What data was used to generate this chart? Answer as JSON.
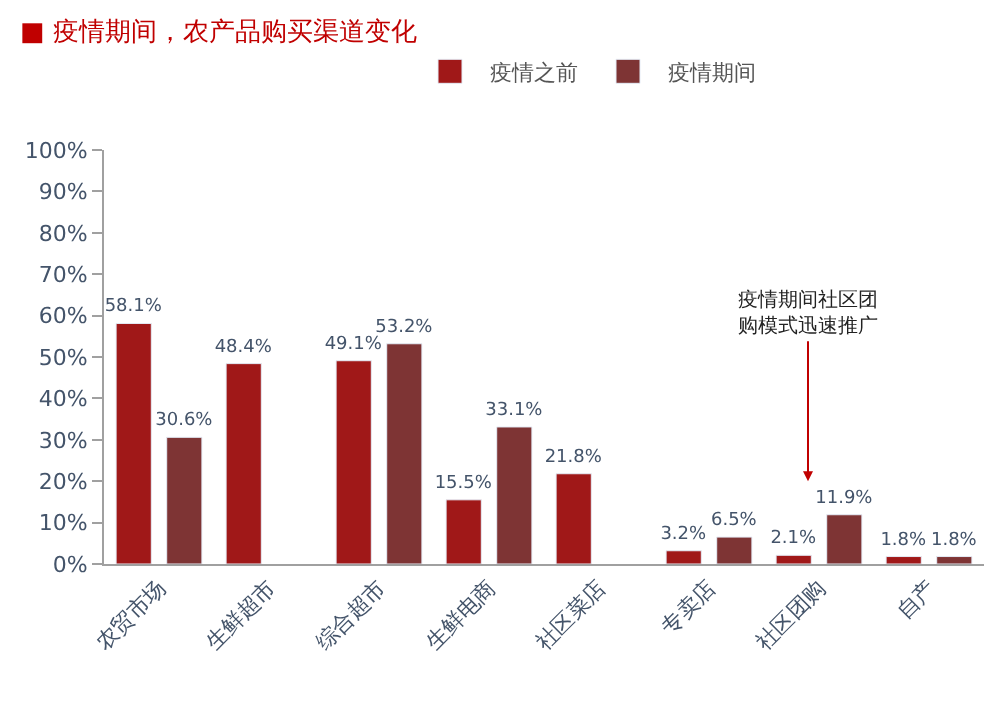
{
  "chart_data": {
    "type": "bar",
    "title": "■ 疫情期间，农产品购买渠道变化",
    "categories": [
      "农贸市场",
      "生鲜超市",
      "综合超市",
      "生鲜电商",
      "社区菜店",
      "专卖店",
      "社区团购",
      "自产"
    ],
    "series": [
      {
        "name": "疫情之前",
        "color": "#a01818",
        "values": [
          58.1,
          48.4,
          49.1,
          15.5,
          21.8,
          3.2,
          2.1,
          1.8
        ],
        "value_labels": [
          "58.1%",
          "48.4%",
          "49.1%",
          "15.5%",
          "21.8%",
          "3.2%",
          "2.1%",
          "1.8%"
        ]
      },
      {
        "name": "疫情期间",
        "color": "#7e3434",
        "values": [
          30.6,
          null,
          53.2,
          33.1,
          null,
          6.5,
          11.9,
          1.8
        ],
        "value_labels": [
          "30.6%",
          null,
          "53.2%",
          "33.1%",
          null,
          "6.5%",
          "11.9%",
          "1.8%"
        ]
      }
    ],
    "ylim": [
      0,
      100
    ],
    "yticks": [
      {
        "value": 0,
        "label": "0%"
      },
      {
        "value": 10,
        "label": "10%"
      },
      {
        "value": 20,
        "label": "20%"
      },
      {
        "value": 30,
        "label": "30%"
      },
      {
        "value": 40,
        "label": "40%"
      },
      {
        "value": 50,
        "label": "50%"
      },
      {
        "value": 60,
        "label": "60%"
      },
      {
        "value": 70,
        "label": "70%"
      },
      {
        "value": 80,
        "label": "80%"
      },
      {
        "value": 90,
        "label": "90%"
      },
      {
        "value": 100,
        "label": "100%"
      }
    ],
    "annotations": [
      "疫情期间社区团购模式迅速推广"
    ],
    "legend": "top"
  }
}
